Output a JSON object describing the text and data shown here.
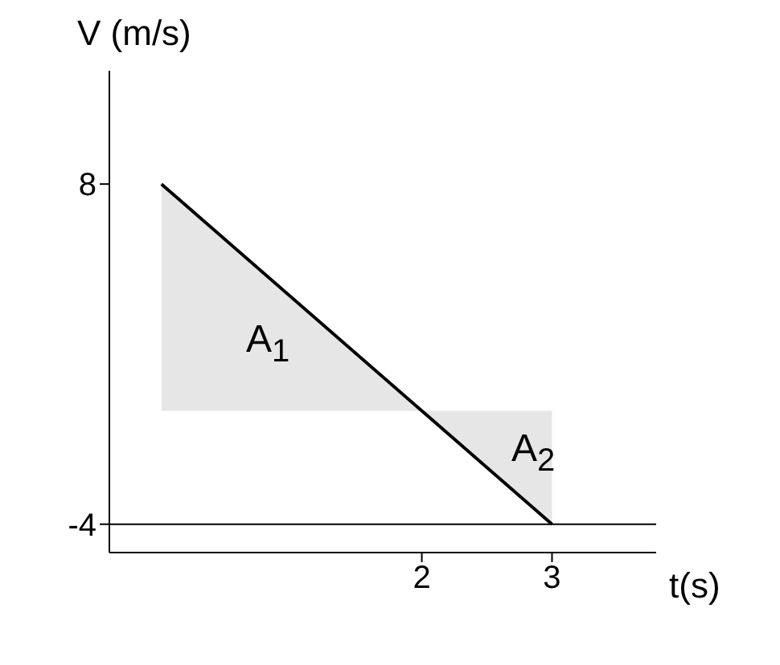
{
  "chart_data": {
    "type": "area",
    "xlabel": "t(s)",
    "ylabel": "V (m/s)",
    "x": [
      0,
      2,
      3
    ],
    "series": [
      {
        "color": "#e6e6e6",
        "values": [
          8,
          0,
          -4
        ]
      }
    ],
    "xlim": [
      -0.4,
      3.8
    ],
    "xticks": [
      2,
      3
    ],
    "ylim": [
      -5,
      12
    ],
    "yticks": [
      8,
      -4
    ],
    "ref_lines": [
      {
        "axis": "y",
        "value": -4,
        "color": "#000000"
      }
    ],
    "annotations": [
      "A$_{1}$",
      "A$_{2}$"
    ],
    "grid": false
  }
}
